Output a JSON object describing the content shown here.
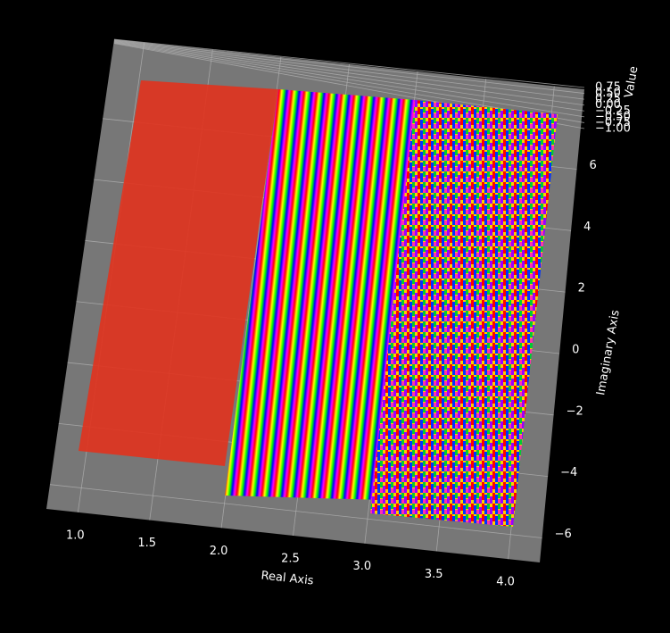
{
  "chart_data": {
    "type": "surface",
    "xlabel": "Real Axis",
    "ylabel": "Imaginary Axis",
    "zlabel": "Value",
    "xlim": [
      0.78,
      4.22
    ],
    "ylim": [
      -6.8,
      8.6
    ],
    "zlim": [
      -1.0,
      0.75
    ],
    "xticks": [
      {
        "value": 1.0,
        "label": "1.0"
      },
      1.5,
      {
        "value": 2.0,
        "label": "2.0"
      },
      2.5,
      {
        "value": 3.0,
        "label": "3.0"
      },
      3.5,
      {
        "value": 4.0,
        "label": "4.0"
      }
    ],
    "yticks": [
      {
        "value": -6,
        "label": "−6"
      },
      {
        "value": -4,
        "label": "−4"
      },
      {
        "value": -2,
        "label": "−2"
      },
      0,
      2,
      4,
      6
    ],
    "zticks": [
      {
        "value": -1.0,
        "label": "−1.00"
      },
      {
        "value": -0.75,
        "label": "−0.75"
      },
      {
        "value": -0.5,
        "label": "−0.50"
      },
      {
        "value": -0.25,
        "label": "−0.25"
      },
      {
        "value": 0.0,
        "label": "0.00"
      },
      0.25,
      {
        "value": 0.5,
        "label": "0.50"
      },
      0.75
    ],
    "grid": true
  }
}
